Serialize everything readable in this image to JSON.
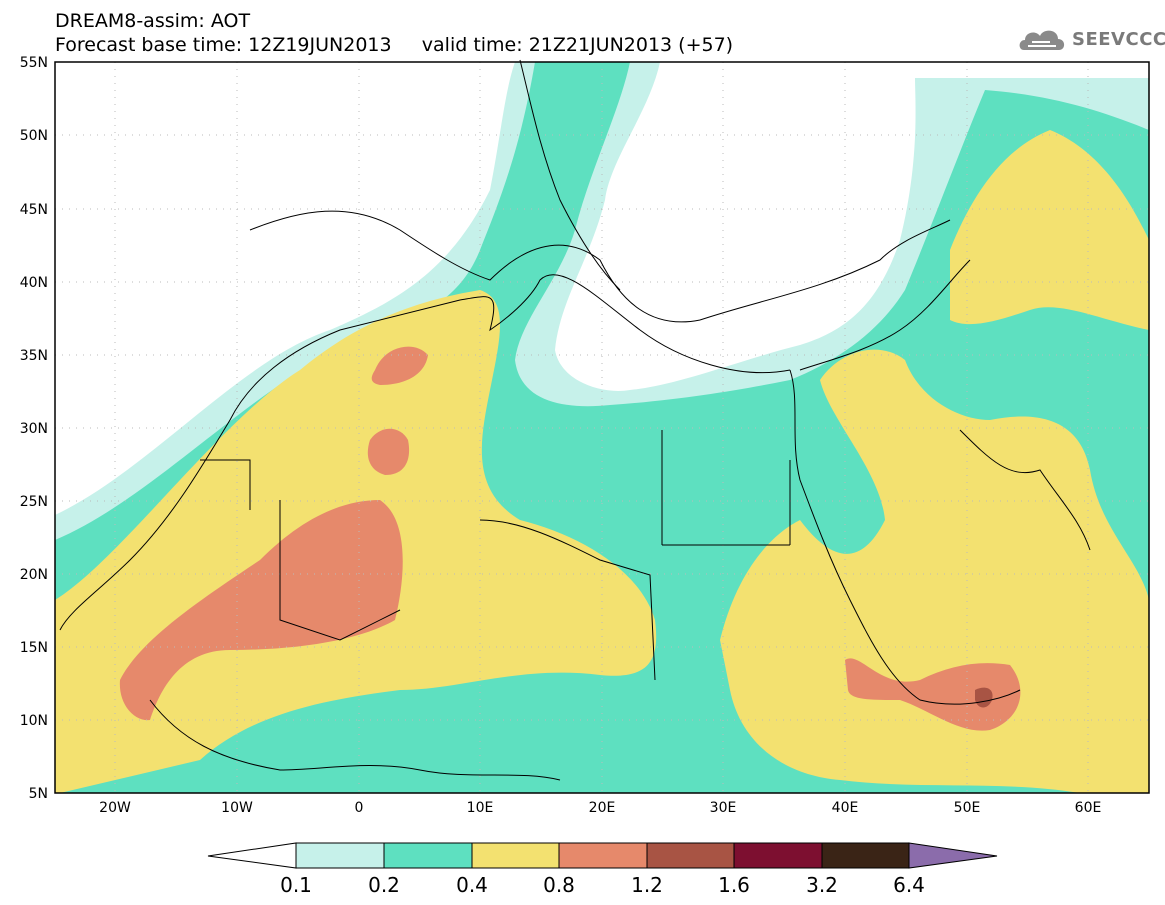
{
  "header": {
    "title": "DREAM8-assim: AOT",
    "subtitle": "Forecast base time: 12Z19JUN2013     valid time: 21Z21JUN2013 (+57)"
  },
  "logo": {
    "text": "SEEVCCC",
    "icon": "cloud-logo-icon"
  },
  "map": {
    "lat_labels": [
      "55N",
      "50N",
      "45N",
      "40N",
      "35N",
      "30N",
      "25N",
      "20N",
      "15N",
      "10N",
      "5N"
    ],
    "lon_labels": [
      "20W",
      "10W",
      "0",
      "10E",
      "20E",
      "30E",
      "40E",
      "50E",
      "60E"
    ],
    "lat_range": [
      5,
      55
    ],
    "lon_range": [
      -25,
      65
    ],
    "grid": "dotted"
  },
  "colorbar": {
    "labels": [
      "0.1",
      "0.2",
      "0.4",
      "0.8",
      "1.2",
      "1.6",
      "3.2",
      "6.4"
    ],
    "colors": [
      "#ffffff",
      "#c6f1ea",
      "#5ee0c0",
      "#f3e170",
      "#e6896b",
      "#a85444",
      "#7d0f30",
      "#3a2416",
      "#8b6cab"
    ]
  }
}
